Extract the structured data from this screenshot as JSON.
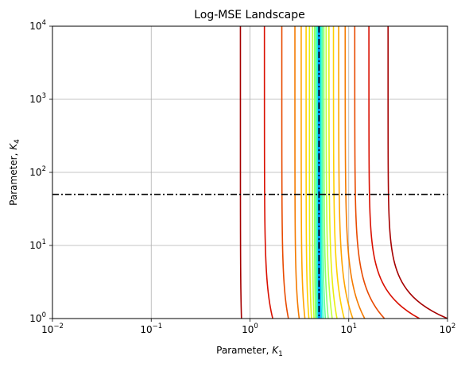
{
  "chart_data": {
    "type": "line",
    "title": "Log-MSE Landscape",
    "xlabel": {
      "text": "Parameter, ",
      "symbol": "K",
      "subscript": "1"
    },
    "ylabel": {
      "text": "Parameter, ",
      "symbol": "K",
      "subscript": "4"
    },
    "x_scale": "log",
    "y_scale": "log",
    "xlim": [
      0.01,
      100
    ],
    "ylim": [
      1,
      10000
    ],
    "grid": true,
    "x_ticks": [
      {
        "value": 0.01,
        "base": "10",
        "exp": "−2"
      },
      {
        "value": 0.1,
        "base": "10",
        "exp": "−1"
      },
      {
        "value": 1,
        "base": "10",
        "exp": "0"
      },
      {
        "value": 10,
        "base": "10",
        "exp": "1"
      },
      {
        "value": 100,
        "base": "10",
        "exp": "2"
      }
    ],
    "y_ticks": [
      {
        "value": 1,
        "base": "10",
        "exp": "0"
      },
      {
        "value": 10,
        "base": "10",
        "exp": "1"
      },
      {
        "value": 100,
        "base": "10",
        "exp": "2"
      },
      {
        "value": 1000,
        "base": "10",
        "exp": "3"
      },
      {
        "value": 10000,
        "base": "10",
        "exp": "4"
      }
    ],
    "reference_lines": [
      {
        "orientation": "vertical",
        "x": 5,
        "style": "dash-dot",
        "color": "#000000"
      },
      {
        "orientation": "horizontal",
        "y": 50,
        "style": "dash-dot",
        "color": "#000000"
      }
    ],
    "contours": [
      {
        "color": "#a50000",
        "left_x": 0.8,
        "left_low_x": 0.82,
        "right_x": 25,
        "right_low_x": 100,
        "right_k": 0.55
      },
      {
        "color": "#d90f00",
        "left_x": 1.4,
        "left_low_x": 1.7,
        "right_x": 16,
        "right_low_x": 52,
        "right_k": 0.6
      },
      {
        "color": "#e84a00",
        "left_x": 2.1,
        "left_low_x": 2.45,
        "right_x": 11.5,
        "right_low_x": 23,
        "right_k": 0.7
      },
      {
        "color": "#f47a00",
        "left_x": 2.85,
        "left_low_x": 3.15,
        "right_x": 9.2,
        "right_low_x": 14.5,
        "right_k": 0.8
      },
      {
        "color": "#ffa300",
        "left_x": 3.3,
        "left_low_x": 3.6,
        "right_x": 7.9,
        "right_low_x": 11,
        "right_k": 0.85
      },
      {
        "color": "#ffd000",
        "left_x": 3.7,
        "left_low_x": 3.95,
        "right_x": 7.0,
        "right_low_x": 9.0,
        "right_k": 0.9
      },
      {
        "color": "#e8ee10",
        "left_x": 4.0,
        "left_low_x": 4.2,
        "right_x": 6.3,
        "right_low_x": 7.6,
        "right_k": 0.95
      },
      {
        "color": "#c0ff3a",
        "left_x": 4.3,
        "left_low_x": 4.45,
        "right_x": 5.9,
        "right_low_x": 6.8,
        "right_k": 1.0
      },
      {
        "color": "#8cff6a",
        "left_x": 4.5,
        "left_low_x": 4.62,
        "right_x": 5.6,
        "right_low_x": 6.2,
        "right_k": 1.0
      },
      {
        "color": "#5cff9b",
        "left_x": 4.65,
        "left_low_x": 4.75,
        "right_x": 5.4,
        "right_low_x": 5.8,
        "right_k": 1.0
      },
      {
        "color": "#30ffc8",
        "left_x": 4.78,
        "left_low_x": 4.85,
        "right_x": 5.25,
        "right_low_x": 5.5,
        "right_k": 1.0
      },
      {
        "color": "#10e8f0",
        "left_x": 4.88,
        "left_low_x": 4.92,
        "right_x": 5.12,
        "right_low_x": 5.3,
        "right_k": 1.0
      },
      {
        "color": "#0090ff",
        "left_x": 4.95,
        "left_low_x": 4.97,
        "right_x": 5.04,
        "right_low_x": 5.12,
        "right_k": 1.0
      }
    ],
    "colors": {
      "grid": "#b0b0b0",
      "axes": "#000000",
      "background": "#ffffff"
    }
  }
}
